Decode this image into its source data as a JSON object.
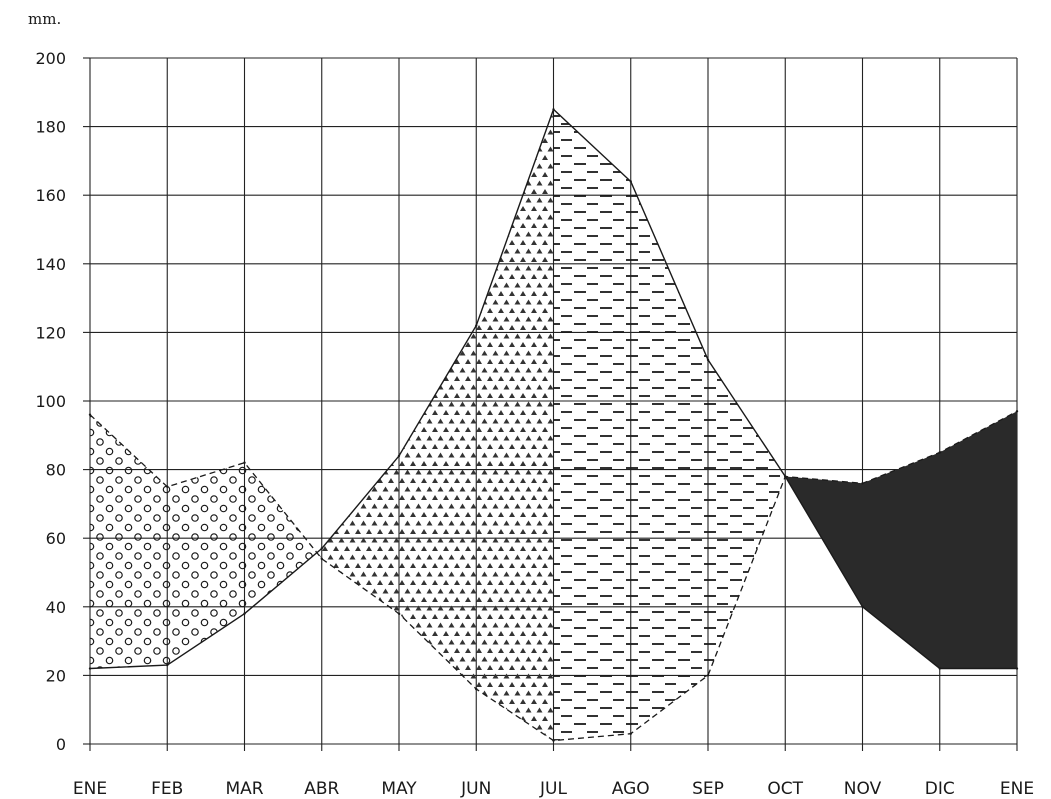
{
  "chart_data": {
    "type": "area",
    "ylabel": "mm.",
    "ylim": [
      0,
      200
    ],
    "yticks": [
      0,
      20,
      40,
      60,
      80,
      100,
      120,
      140,
      160,
      180,
      200
    ],
    "grid": true,
    "categories": [
      "ENE",
      "FEB",
      "MAR",
      "ABR",
      "MAY",
      "JUN",
      "JUL",
      "AGO",
      "SEP",
      "OCT",
      "NOV",
      "DIC",
      "ENE"
    ],
    "series": [
      {
        "values": [
          22,
          23,
          38,
          57,
          84,
          122,
          185,
          164,
          112,
          78,
          40,
          22,
          22
        ],
        "line": "solid"
      },
      {
        "values": [
          96,
          75,
          82,
          54,
          38,
          16,
          1,
          3,
          20,
          78,
          76,
          85,
          97
        ],
        "line": "dashed"
      }
    ],
    "fill_patterns": [
      "circles",
      "triangles",
      "dashes",
      "solid-dark"
    ],
    "colors": {
      "ink": "#1a1a1a",
      "grid": "#222222",
      "dark_fill": "#2a2a2a"
    }
  }
}
